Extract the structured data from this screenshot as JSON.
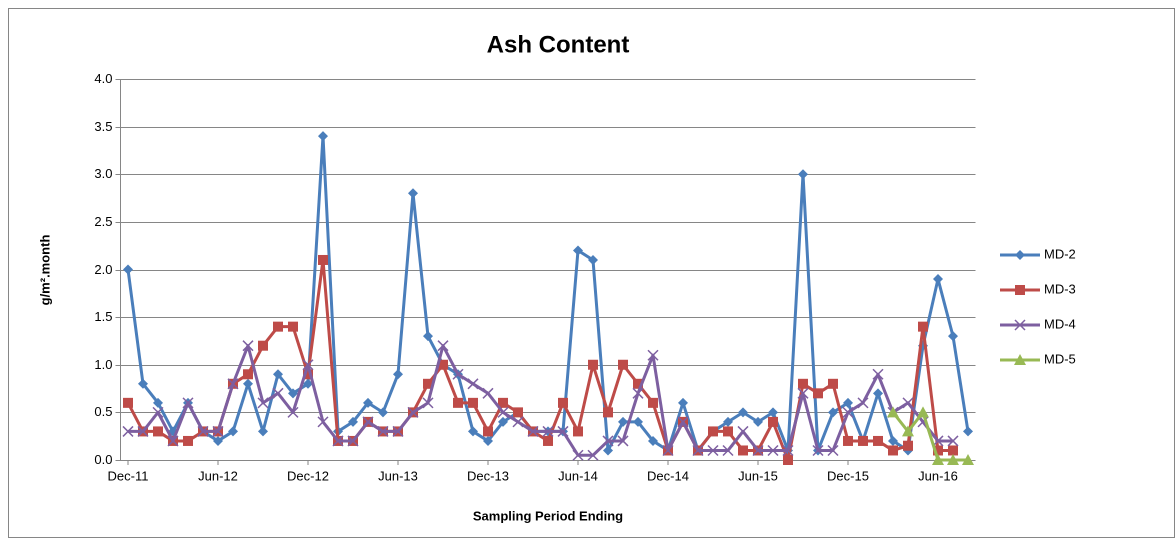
{
  "chart_data": {
    "type": "line",
    "title": "Ash Content",
    "x_label": "Sampling Period Ending",
    "y_label": "g/m².month",
    "categories": [
      "Dec-11",
      null,
      null,
      null,
      null,
      null,
      "Jun-12",
      null,
      null,
      null,
      null,
      null,
      "Dec-12",
      null,
      null,
      null,
      null,
      null,
      "Jun-13",
      null,
      null,
      null,
      null,
      null,
      "Dec-13",
      null,
      null,
      null,
      null,
      null,
      "Jun-14",
      null,
      null,
      null,
      null,
      null,
      "Dec-14",
      null,
      null,
      null,
      null,
      null,
      "Jun-15",
      null,
      null,
      null,
      null,
      null,
      "Dec-15",
      null,
      null,
      null,
      null,
      null,
      "Jun-16",
      null,
      null
    ],
    "series": [
      {
        "name": "MD-2",
        "color": "#4a7ebb",
        "marker": "diamond",
        "values": [
          2.0,
          0.8,
          0.6,
          0.3,
          0.6,
          0.3,
          0.2,
          0.3,
          0.8,
          0.3,
          0.9,
          0.7,
          0.8,
          3.4,
          0.3,
          0.4,
          0.6,
          0.5,
          0.9,
          2.8,
          1.3,
          1.0,
          0.9,
          0.3,
          0.2,
          0.4,
          0.5,
          0.3,
          0.3,
          0.3,
          2.2,
          2.1,
          0.1,
          0.4,
          0.4,
          0.2,
          0.1,
          0.6,
          0.1,
          0.3,
          0.4,
          0.5,
          0.4,
          0.5,
          0.1,
          3.0,
          0.1,
          0.5,
          0.6,
          0.2,
          0.7,
          0.2,
          0.1,
          1.2,
          1.9,
          1.3,
          0.3
        ]
      },
      {
        "name": "MD-3",
        "color": "#be4b48",
        "marker": "square",
        "values": [
          0.6,
          0.3,
          0.3,
          0.2,
          0.2,
          0.3,
          0.3,
          0.8,
          0.9,
          1.2,
          1.4,
          1.4,
          0.9,
          2.1,
          0.2,
          0.2,
          0.4,
          0.3,
          0.3,
          0.5,
          0.8,
          1.0,
          0.6,
          0.6,
          0.3,
          0.6,
          0.5,
          0.3,
          0.2,
          0.6,
          0.3,
          1.0,
          0.5,
          1.0,
          0.8,
          0.6,
          0.1,
          0.4,
          0.1,
          0.3,
          0.3,
          0.1,
          0.1,
          0.4,
          0.0,
          0.8,
          0.7,
          0.8,
          0.2,
          0.2,
          0.2,
          0.1,
          0.15,
          1.4,
          0.1,
          0.1,
          null
        ]
      },
      {
        "name": "MD-4",
        "color": "#7d5fa0",
        "marker": "x",
        "values": [
          0.3,
          0.3,
          0.5,
          0.2,
          0.6,
          0.3,
          0.3,
          0.8,
          1.2,
          0.6,
          0.7,
          0.5,
          1.0,
          0.4,
          0.2,
          0.2,
          0.4,
          0.3,
          0.3,
          0.5,
          0.6,
          1.2,
          0.9,
          0.8,
          0.7,
          0.5,
          0.4,
          0.3,
          0.3,
          0.3,
          0.05,
          0.05,
          0.2,
          0.2,
          0.7,
          1.1,
          0.1,
          0.4,
          0.1,
          0.1,
          0.1,
          0.3,
          0.1,
          0.1,
          0.1,
          0.7,
          0.1,
          0.1,
          0.5,
          0.6,
          0.9,
          0.5,
          0.6,
          0.4,
          0.2,
          0.2,
          null
        ]
      },
      {
        "name": "MD-5",
        "color": "#98b954",
        "marker": "triangle",
        "values": [
          null,
          null,
          null,
          null,
          null,
          null,
          null,
          null,
          null,
          null,
          null,
          null,
          null,
          null,
          null,
          null,
          null,
          null,
          null,
          null,
          null,
          null,
          null,
          null,
          null,
          null,
          null,
          null,
          null,
          null,
          null,
          null,
          null,
          null,
          null,
          null,
          null,
          null,
          null,
          null,
          null,
          null,
          null,
          null,
          null,
          null,
          null,
          null,
          null,
          null,
          null,
          0.5,
          0.3,
          0.5,
          0.0,
          0.0,
          0.0
        ]
      }
    ],
    "ylim": [
      0,
      4
    ],
    "yticks": [
      {
        "value": 0,
        "label": "0.0"
      },
      0.5,
      {
        "value": 1,
        "label": "1.0"
      },
      1.5,
      {
        "value": 2,
        "label": "2.0"
      },
      2.5,
      {
        "value": 3,
        "label": "3.0"
      },
      3.5,
      {
        "value": 4,
        "label": "4.0"
      }
    ],
    "grid": true,
    "legend": "right"
  }
}
